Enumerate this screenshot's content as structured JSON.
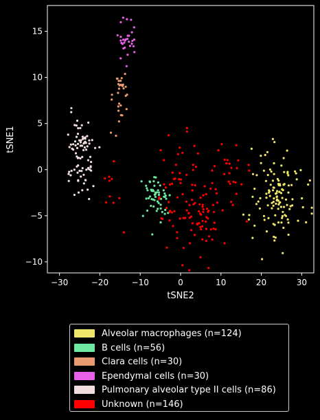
{
  "chart_data": {
    "type": "scatter",
    "xlabel": "tSNE2",
    "ylabel": "tSNE1",
    "xlim": [
      -33,
      33
    ],
    "ylim": [
      -11.2,
      17.8
    ],
    "xticks": [
      -30,
      -20,
      -10,
      0,
      10,
      20,
      30
    ],
    "yticks": [
      -10,
      -5,
      0,
      5,
      10,
      15
    ],
    "xtick_labels": [
      "−30",
      "−20",
      "−10",
      "0",
      "10",
      "20",
      "30"
    ],
    "ytick_labels": [
      "−10",
      "−5",
      "0",
      "5",
      "10",
      "15"
    ],
    "grid": false,
    "legend_position": "below-center",
    "series": [
      {
        "name": "Alveolar macrophages (n=124)",
        "color": "#f0e66c",
        "count": 124,
        "clusters": [
          {
            "cx": 24,
            "cy": -2.5,
            "sx": 3.2,
            "sy": 2.6
          }
        ]
      },
      {
        "name": "B cells (n=56)",
        "color": "#6ee8a0",
        "count": 56,
        "clusters": [
          {
            "cx": -6,
            "cy": -3,
            "sx": 1.7,
            "sy": 1.3
          }
        ]
      },
      {
        "name": "Clara cells (n=30)",
        "color": "#e89a70",
        "count": 30,
        "clusters": [
          {
            "cx": -15,
            "cy": 8,
            "sx": 1.2,
            "sy": 1.4
          }
        ]
      },
      {
        "name": "Ependymal cells (n=30)",
        "color": "#e860e8",
        "count": 30,
        "clusters": [
          {
            "cx": -13,
            "cy": 14,
            "sx": 1.1,
            "sy": 1.2
          }
        ]
      },
      {
        "name": "Pulmonary alveolar type II cells (n=86)",
        "color": "#f2dede",
        "count": 86,
        "clusters": [
          {
            "cx": -25,
            "cy": 1.5,
            "sx": 1.8,
            "sy": 2.2
          }
        ]
      },
      {
        "name": "Unknown (n=146)",
        "color": "#ff0000",
        "count": 146,
        "clusters": [
          {
            "cx": 0,
            "cy": -3.5,
            "sx": 3,
            "sy": 3.2,
            "n": 70
          },
          {
            "cx": 6,
            "cy": -4.5,
            "sx": 2,
            "sy": 2,
            "n": 40
          },
          {
            "cx": 13,
            "cy": 0,
            "sx": 2.5,
            "sy": 2.5,
            "n": 26
          },
          {
            "cx": -17,
            "cy": -2,
            "sx": 2,
            "sy": 1.5,
            "n": 10
          }
        ]
      }
    ]
  }
}
